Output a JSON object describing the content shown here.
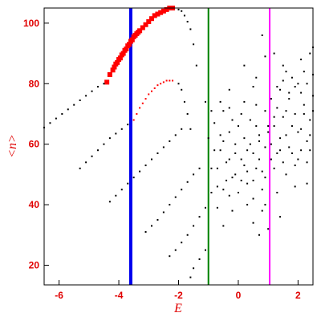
{
  "chart_data": {
    "type": "scatter",
    "title": "",
    "xlabel": "E",
    "ylabel": "<n>",
    "xlim": [
      -6.5,
      2.5
    ],
    "ylim": [
      13.5,
      105
    ],
    "grid": false,
    "x_ticks": [
      -6,
      -4,
      -2,
      0,
      2
    ],
    "y_ticks": [
      20,
      40,
      60,
      80,
      100
    ],
    "x_tick_labels": [
      "-6",
      "-4",
      "-2",
      "0",
      "2"
    ],
    "y_tick_labels": [
      "20",
      "40",
      "60",
      "80",
      "100"
    ],
    "colors": {
      "axes": "#000000",
      "labels": "#e00000",
      "red_points": "#ff0000",
      "black_points": "#000000",
      "blue_line": "#0000ee",
      "green_line": "#008000",
      "magenta_line": "#ff00ff"
    },
    "vertical_lines": [
      {
        "x": -3.6,
        "color": "#0000ee"
      },
      {
        "x": -1.0,
        "color": "#008000"
      },
      {
        "x": 1.05,
        "color": "#ff00ff"
      }
    ],
    "series": [
      {
        "color": "#ff0000",
        "marker": "square",
        "points": [
          [
            -4.4,
            80.5
          ],
          [
            -4.3,
            83
          ],
          [
            -4.2,
            84.5
          ],
          [
            -4.15,
            85.5
          ],
          [
            -4.1,
            86.5
          ],
          [
            -4.05,
            87
          ],
          [
            -4.0,
            88
          ],
          [
            -3.95,
            88.5
          ],
          [
            -3.9,
            89.5
          ],
          [
            -3.85,
            90
          ],
          [
            -3.8,
            91
          ],
          [
            -3.75,
            91.5
          ],
          [
            -3.7,
            92.5
          ],
          [
            -3.65,
            93
          ],
          [
            -3.6,
            94
          ],
          [
            -3.55,
            94.5
          ],
          [
            -3.5,
            95.5
          ],
          [
            -3.45,
            96
          ],
          [
            -3.4,
            96.5
          ],
          [
            -3.35,
            97
          ],
          [
            -3.3,
            97.5
          ],
          [
            -3.2,
            98.5
          ],
          [
            -3.1,
            99.5
          ],
          [
            -3.0,
            100.5
          ],
          [
            -2.9,
            101.5
          ],
          [
            -2.8,
            102.5
          ],
          [
            -2.7,
            103
          ],
          [
            -2.6,
            103.5
          ],
          [
            -2.5,
            104
          ],
          [
            -2.4,
            104.5
          ],
          [
            -2.3,
            105
          ],
          [
            -2.2,
            105
          ]
        ]
      },
      {
        "color": "#ff0000",
        "marker": "dot",
        "points": [
          [
            -3.5,
            68
          ],
          [
            -3.4,
            70
          ],
          [
            -3.3,
            72
          ],
          [
            -3.2,
            73.5
          ],
          [
            -3.1,
            75
          ],
          [
            -3.0,
            76.5
          ],
          [
            -2.9,
            77.5
          ],
          [
            -2.8,
            78.5
          ],
          [
            -2.7,
            79.5
          ],
          [
            -2.6,
            80
          ],
          [
            -2.5,
            80.5
          ],
          [
            -2.4,
            81
          ],
          [
            -2.3,
            81
          ],
          [
            -2.2,
            81
          ]
        ]
      },
      {
        "color": "#000000",
        "marker": "dot",
        "points": [
          [
            -6.5,
            65.5
          ],
          [
            -6.3,
            67
          ],
          [
            -6.1,
            68.5
          ],
          [
            -5.9,
            70
          ],
          [
            -5.7,
            71.5
          ],
          [
            -5.5,
            73
          ],
          [
            -5.3,
            74.5
          ],
          [
            -5.1,
            76
          ],
          [
            -4.9,
            77.5
          ],
          [
            -4.7,
            79
          ],
          [
            -4.5,
            80
          ],
          [
            -2.0,
            104.5
          ],
          [
            -1.9,
            104
          ],
          [
            -1.8,
            102.5
          ],
          [
            -1.7,
            100.5
          ],
          [
            -1.6,
            98
          ],
          [
            -1.5,
            93
          ],
          [
            -1.4,
            86
          ],
          [
            -5.3,
            52
          ],
          [
            -5.1,
            54
          ],
          [
            -4.9,
            56
          ],
          [
            -4.7,
            58
          ],
          [
            -4.5,
            60
          ],
          [
            -4.3,
            62
          ],
          [
            -4.1,
            63.5
          ],
          [
            -3.9,
            65
          ],
          [
            -3.7,
            66.5
          ],
          [
            -2.0,
            80
          ],
          [
            -1.9,
            78
          ],
          [
            -1.8,
            74
          ],
          [
            -1.7,
            70
          ],
          [
            -1.6,
            65
          ],
          [
            -4.3,
            41
          ],
          [
            -4.1,
            43
          ],
          [
            -3.9,
            45
          ],
          [
            -3.7,
            47
          ],
          [
            -3.5,
            49
          ],
          [
            -3.3,
            51
          ],
          [
            -3.1,
            53
          ],
          [
            -2.9,
            55
          ],
          [
            -2.7,
            57
          ],
          [
            -2.5,
            59
          ],
          [
            -2.3,
            61
          ],
          [
            -2.1,
            63
          ],
          [
            -1.9,
            65
          ],
          [
            -3.1,
            31
          ],
          [
            -2.9,
            33
          ],
          [
            -2.7,
            35
          ],
          [
            -2.5,
            37.5
          ],
          [
            -2.3,
            40
          ],
          [
            -2.1,
            42.5
          ],
          [
            -1.9,
            45
          ],
          [
            -1.7,
            47.5
          ],
          [
            -1.5,
            50
          ],
          [
            -1.3,
            52
          ],
          [
            -2.3,
            23
          ],
          [
            -2.1,
            25
          ],
          [
            -1.9,
            27.5
          ],
          [
            -1.7,
            30
          ],
          [
            -1.5,
            33
          ],
          [
            -1.3,
            36
          ],
          [
            -1.1,
            39
          ],
          [
            -1.6,
            16
          ],
          [
            -1.5,
            19
          ],
          [
            -1.3,
            22
          ],
          [
            -1.1,
            25
          ],
          [
            -1.0,
            62
          ],
          [
            -0.8,
            67
          ],
          [
            -0.6,
            58
          ],
          [
            -0.5,
            71
          ],
          [
            -0.4,
            54
          ],
          [
            -0.3,
            64
          ],
          [
            -0.2,
            49
          ],
          [
            -0.1,
            60
          ],
          [
            0.0,
            66
          ],
          [
            0.1,
            55
          ],
          [
            0.2,
            62
          ],
          [
            0.3,
            47
          ],
          [
            0.4,
            68
          ],
          [
            0.5,
            57
          ],
          [
            0.6,
            52
          ],
          [
            0.7,
            63
          ],
          [
            0.8,
            45
          ],
          [
            0.9,
            59
          ],
          [
            1.0,
            66
          ],
          [
            -0.9,
            52
          ],
          [
            -0.7,
            46
          ],
          [
            -0.5,
            61
          ],
          [
            -0.3,
            55
          ],
          [
            -0.1,
            50
          ],
          [
            0.1,
            70
          ],
          [
            0.3,
            58
          ],
          [
            0.5,
            42
          ],
          [
            0.7,
            55
          ],
          [
            0.9,
            49
          ],
          [
            -0.8,
            58
          ],
          [
            -0.6,
            63
          ],
          [
            -0.4,
            48
          ],
          [
            -0.2,
            68
          ],
          [
            0.0,
            44
          ],
          [
            0.2,
            53
          ],
          [
            0.4,
            60
          ],
          [
            0.6,
            66
          ],
          [
            0.8,
            51
          ],
          [
            -1.1,
            74
          ],
          [
            -0.9,
            71
          ],
          [
            -0.6,
            74
          ],
          [
            -0.3,
            72
          ],
          [
            0.2,
            74
          ],
          [
            0.6,
            73
          ],
          [
            -0.7,
            39
          ],
          [
            -0.2,
            38
          ],
          [
            0.3,
            40
          ],
          [
            0.8,
            38
          ],
          [
            -0.5,
            33
          ],
          [
            0.5,
            34
          ],
          [
            1.1,
            60
          ],
          [
            1.2,
            66
          ],
          [
            1.3,
            72
          ],
          [
            1.4,
            58
          ],
          [
            1.5,
            69
          ],
          [
            1.6,
            63
          ],
          [
            1.7,
            75
          ],
          [
            1.8,
            57
          ],
          [
            1.9,
            70
          ],
          [
            2.0,
            80
          ],
          [
            2.1,
            65
          ],
          [
            2.2,
            73
          ],
          [
            2.3,
            61
          ],
          [
            2.4,
            68
          ],
          [
            2.5,
            76
          ],
          [
            1.2,
            52
          ],
          [
            1.4,
            78
          ],
          [
            1.6,
            50
          ],
          [
            1.8,
            82
          ],
          [
            2.0,
            55
          ],
          [
            2.2,
            84
          ],
          [
            2.4,
            58
          ],
          [
            1.3,
            44
          ],
          [
            1.9,
            46
          ],
          [
            2.3,
            47
          ],
          [
            1.5,
            86
          ],
          [
            2.1,
            88
          ],
          [
            2.4,
            90
          ],
          [
            0.8,
            96
          ],
          [
            1.2,
            90
          ],
          [
            1.6,
            84
          ],
          [
            1.0,
            64
          ],
          [
            1.2,
            69
          ],
          [
            1.4,
            62
          ],
          [
            1.6,
            71
          ],
          [
            1.8,
            66
          ],
          [
            2.0,
            64
          ],
          [
            2.2,
            70
          ],
          [
            2.4,
            63
          ],
          [
            2.5,
            71
          ],
          [
            1.1,
            55
          ],
          [
            1.3,
            57
          ],
          [
            1.5,
            54
          ],
          [
            1.7,
            59
          ],
          [
            1.9,
            53
          ],
          [
            2.1,
            58
          ],
          [
            2.3,
            54
          ],
          [
            0.9,
            71
          ],
          [
            1.1,
            75
          ],
          [
            1.3,
            79
          ],
          [
            1.5,
            81
          ],
          [
            1.7,
            77
          ],
          [
            1.9,
            79
          ],
          [
            2.1,
            77
          ],
          [
            2.3,
            80
          ],
          [
            2.5,
            83
          ],
          [
            0.6,
            82
          ],
          [
            0.9,
            89
          ],
          [
            2.5,
            92
          ],
          [
            0.2,
            86
          ],
          [
            0.5,
            79
          ],
          [
            -0.3,
            78
          ],
          [
            0.7,
            30
          ],
          [
            1.0,
            32
          ],
          [
            1.4,
            36
          ],
          [
            -0.9,
            44
          ],
          [
            -0.7,
            52
          ],
          [
            -0.5,
            45
          ],
          [
            -0.3,
            43
          ],
          [
            -0.1,
            57
          ],
          [
            0.1,
            48
          ],
          [
            0.3,
            51
          ],
          [
            0.5,
            48
          ],
          [
            0.7,
            61
          ],
          [
            0.9,
            40
          ]
        ]
      }
    ]
  }
}
